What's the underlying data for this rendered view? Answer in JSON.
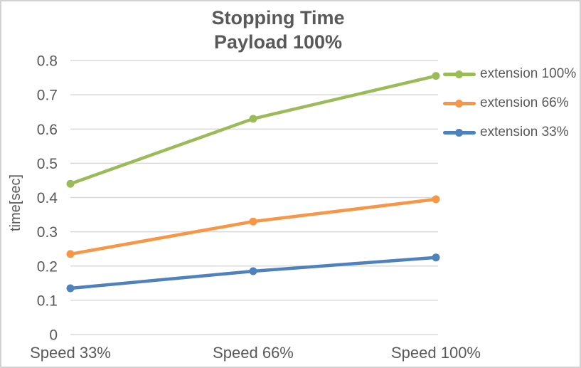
{
  "window": {
    "background_color": "#FFFFFF",
    "border_color": "#D2D2D2"
  },
  "chart_data": {
    "type": "line",
    "title": "Stopping Time",
    "subtitle": "Payload 100%",
    "ylabel": "time[sec]",
    "xlabel": "",
    "categories": [
      "Speed 33%",
      "Speed 66%",
      "Speed 100%"
    ],
    "series": [
      {
        "name": "extension 100%",
        "color": "#9BBB59",
        "values": [
          0.44,
          0.63,
          0.755
        ]
      },
      {
        "name": "extension 66%",
        "color": "#F79646",
        "values": [
          0.235,
          0.33,
          0.395
        ]
      },
      {
        "name": "extension 33%",
        "color": "#4F81BD",
        "values": [
          0.135,
          0.185,
          0.225
        ]
      }
    ],
    "ylim": [
      0,
      0.8
    ],
    "y_ticks": [
      "0",
      "0.1",
      "0.2",
      "0.3",
      "0.4",
      "0.5",
      "0.6",
      "0.7",
      "0.8"
    ],
    "grid": true,
    "gridline_color": "#D9D9D9",
    "text_color": "#595959",
    "legend_position": "right",
    "marker": "circle"
  }
}
